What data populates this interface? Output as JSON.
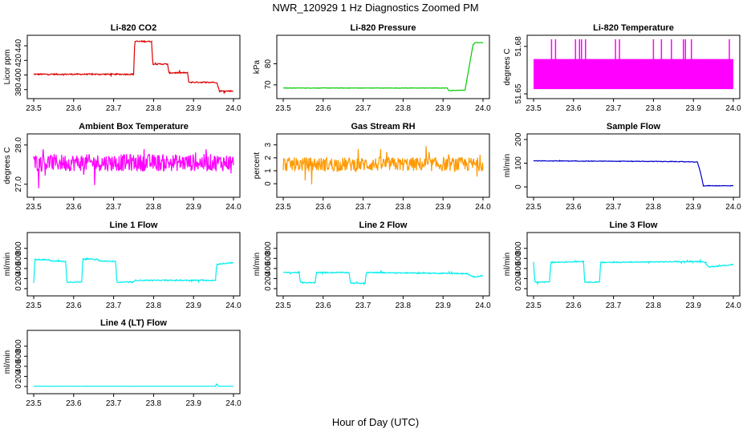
{
  "title": "NWR_120929  1 Hz Diagnostics Zoomed PM",
  "xlabel": "Hour of Day (UTC)",
  "chart_data": [
    {
      "type": "line",
      "title": "Li-820 CO2",
      "ylabel": "Licor ppm",
      "color": "#dd0000",
      "xlim": [
        23.5,
        24.0
      ],
      "ylim": [
        372,
        450
      ],
      "xticks": [
        "23.5",
        "23.6",
        "23.7",
        "23.8",
        "23.9",
        "24.0"
      ],
      "yticks": [
        380,
        400,
        420,
        440
      ],
      "yticklabels": [
        "380",
        "400",
        "420",
        "440"
      ],
      "series": [
        {
          "x": [
            23.5,
            23.75,
            23.753,
            23.795,
            23.798,
            23.835,
            23.838,
            23.885,
            23.888,
            23.955,
            23.958,
            23.965,
            23.968,
            24.0
          ],
          "values": [
            401,
            401,
            446,
            446,
            415,
            415,
            403,
            403,
            390,
            390,
            390,
            378,
            378,
            378
          ]
        }
      ],
      "noise": 0.8
    },
    {
      "type": "line",
      "title": "Li-820 Pressure",
      "ylabel": "kPa",
      "color": "#00cc00",
      "xlim": [
        23.5,
        24.0
      ],
      "ylim": [
        65,
        92
      ],
      "xticks": [
        "23.5",
        "23.6",
        "23.7",
        "23.8",
        "23.9",
        "24.0"
      ],
      "yticks": [
        70,
        80
      ],
      "yticklabels": [
        "70",
        "80"
      ],
      "series": [
        {
          "x": [
            23.5,
            23.91,
            23.915,
            23.955,
            23.975,
            23.98,
            24.0
          ],
          "values": [
            68.5,
            68.5,
            67.3,
            67.5,
            89,
            90,
            90
          ]
        }
      ],
      "noise": 0.1
    },
    {
      "type": "line",
      "title": "Li-820 Temperature",
      "ylabel": "degrees C",
      "color": "#ff00ff",
      "xlim": [
        23.5,
        24.0
      ],
      "ylim": [
        51.649,
        51.685
      ],
      "xticks": [
        "23.5",
        "23.6",
        "23.7",
        "23.8",
        "23.9",
        "24.0"
      ],
      "yticks": [
        51.65,
        51.68
      ],
      "yticklabels": [
        "51.65",
        "51.68"
      ],
      "series": [
        {
          "x": [
            23.5,
            24.0
          ],
          "values": [
            51.672,
            51.672
          ],
          "low": 51.653,
          "spikes": [
            23.545,
            23.555,
            23.605,
            23.615,
            23.62,
            23.63,
            23.705,
            23.715,
            23.8,
            23.82,
            23.845,
            23.875,
            23.88,
            23.895,
            23.99
          ]
        }
      ],
      "noise": 0
    },
    {
      "type": "line",
      "title": "Ambient Box Temperature",
      "ylabel": "degrees C",
      "color": "#ff00ff",
      "xlim": [
        23.5,
        24.0
      ],
      "ylim": [
        26.75,
        28.2
      ],
      "xticks": [
        "23.5",
        "23.6",
        "23.7",
        "23.8",
        "23.9",
        "24.0"
      ],
      "yticks": [
        27.0,
        28.0
      ],
      "yticklabels": [
        "27.0",
        "28.0"
      ],
      "series": [
        {
          "x": [
            23.5,
            24.0
          ],
          "values": [
            27.55,
            27.55
          ]
        }
      ],
      "noise": 0.22
    },
    {
      "type": "line",
      "title": "Gas Stream RH",
      "ylabel": "percent",
      "color": "#ff9900",
      "xlim": [
        23.5,
        24.0
      ],
      "ylim": [
        -0.8,
        3.6
      ],
      "xticks": [
        "23.5",
        "23.6",
        "23.7",
        "23.8",
        "23.9",
        "24.0"
      ],
      "yticks": [
        0,
        1,
        2,
        3
      ],
      "yticklabels": [
        "0",
        "1",
        "2",
        "3"
      ],
      "series": [
        {
          "x": [
            23.5,
            24.0
          ],
          "values": [
            1.5,
            1.5
          ]
        }
      ],
      "noise": 0.55
    },
    {
      "type": "line",
      "title": "Sample Flow",
      "ylabel": "ml/min",
      "color": "#0000cc",
      "xlim": [
        23.5,
        24.0
      ],
      "ylim": [
        -30,
        210
      ],
      "xticks": [
        "23.5",
        "23.6",
        "23.7",
        "23.8",
        "23.9",
        "24.0"
      ],
      "yticks": [
        0,
        100,
        200
      ],
      "yticklabels": [
        "0",
        "100",
        "200"
      ],
      "series": [
        {
          "x": [
            23.5,
            23.85,
            23.91,
            23.918,
            23.925,
            24.0
          ],
          "values": [
            110,
            107,
            105,
            60,
            5,
            5
          ]
        }
      ],
      "noise": 1.2
    },
    {
      "type": "line",
      "title": "Line 1 Flow",
      "ylabel": "ml/min",
      "color": "#00eeee",
      "xlim": [
        23.5,
        24.0
      ],
      "ylim": [
        -80,
        1050
      ],
      "xticks": [
        "23.5",
        "23.6",
        "23.7",
        "23.8",
        "23.9",
        "24.0"
      ],
      "yticks": [
        0,
        200,
        400,
        600,
        800
      ],
      "yticklabels": [
        "0",
        "200",
        "400",
        "600",
        "800"
      ],
      "series": [
        {
          "x": [
            23.5,
            23.503,
            23.54,
            23.542,
            23.58,
            23.583,
            23.62,
            23.623,
            23.66,
            23.663,
            23.705,
            23.708,
            23.75,
            23.753,
            23.955,
            23.958,
            24.0
          ],
          "values": [
            120,
            580,
            570,
            550,
            540,
            130,
            130,
            590,
            580,
            550,
            540,
            130,
            130,
            165,
            165,
            480,
            520
          ]
        }
      ],
      "noise": 10
    },
    {
      "type": "line",
      "title": "Line 2 Flow",
      "ylabel": "ml/min",
      "color": "#00eeee",
      "xlim": [
        23.5,
        24.0
      ],
      "ylim": [
        -80,
        1050
      ],
      "xticks": [
        "23.5",
        "23.6",
        "23.7",
        "23.8",
        "23.9",
        "24.0"
      ],
      "yticks": [
        0,
        200,
        400,
        600,
        800
      ],
      "yticklabels": [
        "0",
        "200",
        "400",
        "600",
        "800"
      ],
      "series": [
        {
          "x": [
            23.5,
            23.54,
            23.543,
            23.58,
            23.583,
            23.665,
            23.668,
            23.705,
            23.708,
            23.96,
            23.975,
            24.0
          ],
          "values": [
            320,
            320,
            120,
            120,
            320,
            320,
            110,
            110,
            320,
            300,
            230,
            260
          ]
        }
      ],
      "noise": 10
    },
    {
      "type": "line",
      "title": "Line 3 Flow",
      "ylabel": "ml/min",
      "color": "#00eeee",
      "xlim": [
        23.5,
        24.0
      ],
      "ylim": [
        -80,
        1050
      ],
      "xticks": [
        "23.5",
        "23.6",
        "23.7",
        "23.8",
        "23.9",
        "24.0"
      ],
      "yticks": [
        0,
        200,
        400,
        600,
        800
      ],
      "yticklabels": [
        "0",
        "200",
        "400",
        "600",
        "800"
      ],
      "series": [
        {
          "x": [
            23.5,
            23.503,
            23.54,
            23.543,
            23.625,
            23.628,
            23.665,
            23.668,
            23.925,
            23.94,
            24.0
          ],
          "values": [
            540,
            130,
            130,
            520,
            540,
            130,
            130,
            520,
            540,
            430,
            480
          ]
        }
      ],
      "noise": 10
    },
    {
      "type": "line",
      "title": "Line 4 (LT) Flow",
      "ylabel": "ml/min",
      "color": "#00eeee",
      "xlim": [
        23.5,
        24.0
      ],
      "ylim": [
        -80,
        1050
      ],
      "xticks": [
        "23.5",
        "23.6",
        "23.7",
        "23.8",
        "23.9",
        "24.0"
      ],
      "yticks": [
        0,
        200,
        400,
        600,
        800
      ],
      "yticklabels": [
        "0",
        "200",
        "400",
        "600",
        "800"
      ],
      "series": [
        {
          "x": [
            23.5,
            23.955,
            23.958,
            23.962,
            24.0
          ],
          "values": [
            5,
            5,
            55,
            5,
            5
          ]
        }
      ],
      "noise": 1
    }
  ]
}
